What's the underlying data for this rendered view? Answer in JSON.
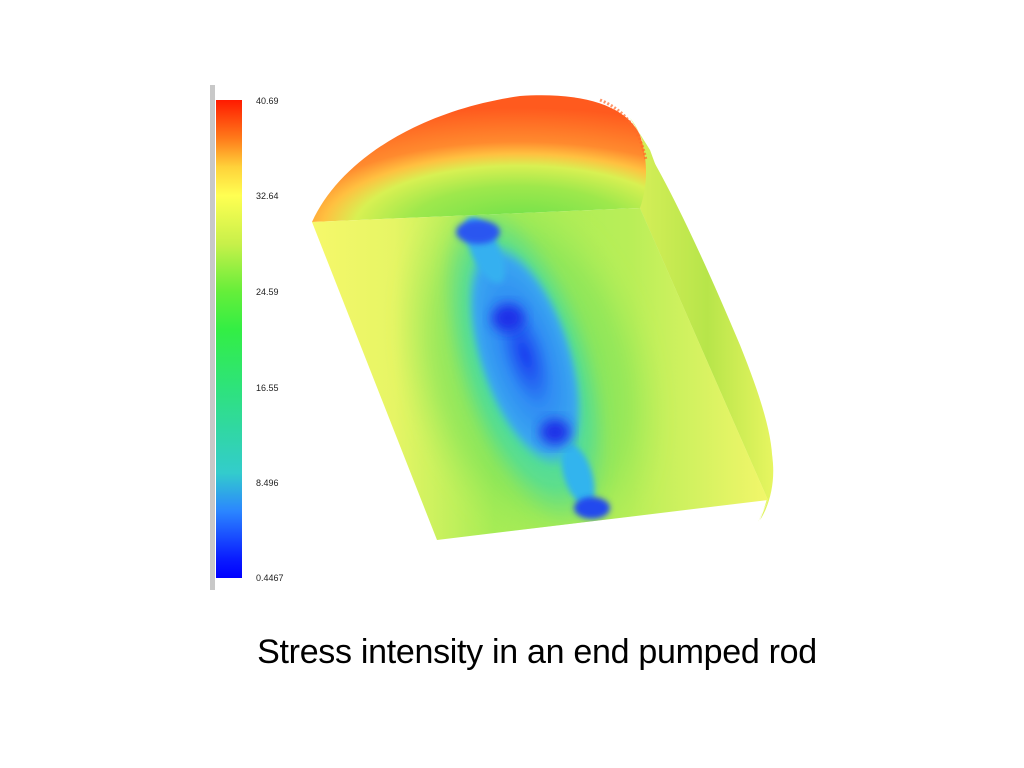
{
  "legend": {
    "ticks": [
      "40.69",
      "32.64",
      "24.59",
      "16.55",
      "8.496",
      "0.4467"
    ],
    "colors": [
      "#ff1a00",
      "#ffff52",
      "#33ee44",
      "#33cccc",
      "#0000ff"
    ]
  },
  "caption": "Stress intensity in an end pumped rod"
}
